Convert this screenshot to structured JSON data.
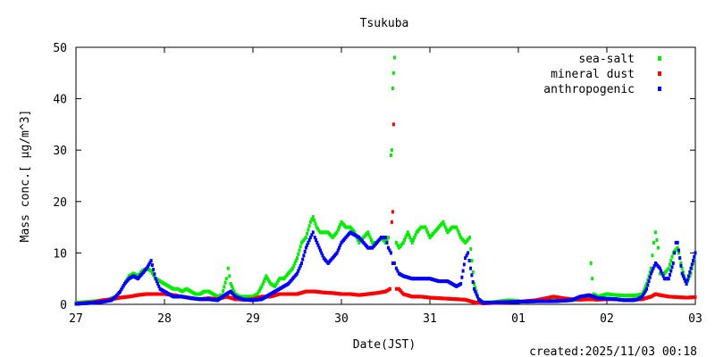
{
  "chart_data": {
    "type": "scatter",
    "title": "Tsukuba",
    "xlabel": "Date(JST)",
    "ylabel": "Mass conc.[ μg/m^3]",
    "footer": "created:2025/11/03 00:18",
    "ylim": [
      0,
      50
    ],
    "xlim": [
      0,
      7
    ],
    "x_tick_labels": [
      "27",
      "28",
      "29",
      "30",
      "31",
      "01",
      "02",
      "03"
    ],
    "y_tick_labels": [
      "0",
      "10",
      "20",
      "30",
      "40",
      "50"
    ],
    "y_ticks": [
      0,
      10,
      20,
      30,
      40,
      50
    ],
    "x_unit": "days from 27",
    "legend_position": "top-right",
    "grid": false,
    "series": [
      {
        "name": "sea-salt",
        "color": "#00ee00",
        "points": [
          [
            0.0,
            0.3
          ],
          [
            0.2,
            0.6
          ],
          [
            0.35,
            0.8
          ],
          [
            0.45,
            1.5
          ],
          [
            0.5,
            2.5
          ],
          [
            0.55,
            4
          ],
          [
            0.6,
            5.5
          ],
          [
            0.65,
            6
          ],
          [
            0.7,
            5.5
          ],
          [
            0.75,
            6.5
          ],
          [
            0.8,
            7
          ],
          [
            0.85,
            6.5
          ],
          [
            0.9,
            5
          ],
          [
            0.95,
            4.5
          ],
          [
            1.0,
            4
          ],
          [
            1.05,
            3.5
          ],
          [
            1.1,
            3
          ],
          [
            1.15,
            3
          ],
          [
            1.2,
            2.5
          ],
          [
            1.25,
            3
          ],
          [
            1.3,
            2.5
          ],
          [
            1.35,
            2
          ],
          [
            1.4,
            2
          ],
          [
            1.45,
            2.5
          ],
          [
            1.5,
            2.5
          ],
          [
            1.55,
            2
          ],
          [
            1.6,
            1.5
          ],
          [
            1.65,
            1.8
          ],
          [
            1.7,
            5
          ],
          [
            1.72,
            7
          ],
          [
            1.75,
            4
          ],
          [
            1.8,
            2
          ],
          [
            1.85,
            1.5
          ],
          [
            1.9,
            1.5
          ],
          [
            1.95,
            1.5
          ],
          [
            2.0,
            1.5
          ],
          [
            2.05,
            2
          ],
          [
            2.1,
            3.5
          ],
          [
            2.15,
            5.5
          ],
          [
            2.2,
            4
          ],
          [
            2.25,
            3.5
          ],
          [
            2.3,
            5
          ],
          [
            2.35,
            5
          ],
          [
            2.4,
            6
          ],
          [
            2.45,
            7
          ],
          [
            2.5,
            9
          ],
          [
            2.55,
            12
          ],
          [
            2.6,
            13
          ],
          [
            2.65,
            16
          ],
          [
            2.68,
            17
          ],
          [
            2.72,
            15
          ],
          [
            2.76,
            14
          ],
          [
            2.8,
            14
          ],
          [
            2.85,
            14
          ],
          [
            2.9,
            13
          ],
          [
            2.95,
            14
          ],
          [
            3.0,
            16
          ],
          [
            3.05,
            15
          ],
          [
            3.1,
            15
          ],
          [
            3.15,
            14
          ],
          [
            3.2,
            12
          ],
          [
            3.25,
            13
          ],
          [
            3.3,
            14
          ],
          [
            3.35,
            12
          ],
          [
            3.4,
            12
          ],
          [
            3.45,
            13
          ],
          [
            3.5,
            12
          ],
          [
            3.53,
            13
          ],
          [
            3.56,
            29
          ],
          [
            3.57,
            30
          ],
          [
            3.58,
            42
          ],
          [
            3.59,
            45
          ],
          [
            3.6,
            48
          ],
          [
            3.62,
            12
          ],
          [
            3.65,
            11
          ],
          [
            3.7,
            12
          ],
          [
            3.75,
            14
          ],
          [
            3.8,
            12
          ],
          [
            3.85,
            14
          ],
          [
            3.9,
            15
          ],
          [
            3.95,
            15
          ],
          [
            4.0,
            13
          ],
          [
            4.05,
            14
          ],
          [
            4.1,
            15
          ],
          [
            4.15,
            16
          ],
          [
            4.2,
            14
          ],
          [
            4.25,
            15
          ],
          [
            4.3,
            15
          ],
          [
            4.35,
            13
          ],
          [
            4.4,
            12
          ],
          [
            4.45,
            13
          ],
          [
            4.5,
            4
          ],
          [
            4.55,
            1
          ],
          [
            4.6,
            0.4
          ],
          [
            4.7,
            0.4
          ],
          [
            4.8,
            0.6
          ],
          [
            4.9,
            0.8
          ],
          [
            5.0,
            0.6
          ],
          [
            5.1,
            0.5
          ],
          [
            5.2,
            0.6
          ],
          [
            5.3,
            0.6
          ],
          [
            5.4,
            1
          ],
          [
            5.5,
            1
          ],
          [
            5.6,
            0.8
          ],
          [
            5.7,
            1
          ],
          [
            5.8,
            1.5
          ],
          [
            5.82,
            8
          ],
          [
            5.85,
            2
          ],
          [
            5.9,
            1.5
          ],
          [
            6.0,
            2
          ],
          [
            6.1,
            1.8
          ],
          [
            6.2,
            1.7
          ],
          [
            6.3,
            1.7
          ],
          [
            6.35,
            1.8
          ],
          [
            6.4,
            2
          ],
          [
            6.45,
            4
          ],
          [
            6.5,
            7
          ],
          [
            6.53,
            12
          ],
          [
            6.55,
            14
          ],
          [
            6.58,
            11
          ],
          [
            6.6,
            6
          ],
          [
            6.65,
            6
          ],
          [
            6.7,
            7
          ],
          [
            6.75,
            10
          ],
          [
            6.8,
            11
          ],
          [
            6.85,
            7
          ],
          [
            6.9,
            4
          ],
          [
            6.95,
            6
          ],
          [
            7.0,
            10
          ]
        ]
      },
      {
        "name": "mineral dust",
        "color": "#ff0000",
        "points": [
          [
            0.0,
            0.1
          ],
          [
            0.2,
            0.4
          ],
          [
            0.3,
            0.8
          ],
          [
            0.4,
            1
          ],
          [
            0.5,
            1.3
          ],
          [
            0.6,
            1.5
          ],
          [
            0.7,
            1.8
          ],
          [
            0.8,
            2
          ],
          [
            0.9,
            2
          ],
          [
            1.0,
            2
          ],
          [
            1.1,
            1.8
          ],
          [
            1.2,
            1.5
          ],
          [
            1.3,
            1.2
          ],
          [
            1.4,
            1
          ],
          [
            1.5,
            1.2
          ],
          [
            1.6,
            1
          ],
          [
            1.7,
            1.5
          ],
          [
            1.8,
            1
          ],
          [
            1.9,
            0.9
          ],
          [
            2.0,
            1
          ],
          [
            2.1,
            1.5
          ],
          [
            2.2,
            1.5
          ],
          [
            2.3,
            2
          ],
          [
            2.4,
            2
          ],
          [
            2.5,
            2
          ],
          [
            2.6,
            2.5
          ],
          [
            2.7,
            2.5
          ],
          [
            2.8,
            2.3
          ],
          [
            2.9,
            2.2
          ],
          [
            3.0,
            2
          ],
          [
            3.1,
            2
          ],
          [
            3.2,
            1.8
          ],
          [
            3.3,
            2
          ],
          [
            3.4,
            2.2
          ],
          [
            3.5,
            2.5
          ],
          [
            3.55,
            3
          ],
          [
            3.57,
            16
          ],
          [
            3.58,
            18
          ],
          [
            3.59,
            35
          ],
          [
            3.62,
            3
          ],
          [
            3.65,
            3
          ],
          [
            3.7,
            2
          ],
          [
            3.8,
            1.5
          ],
          [
            3.9,
            1.5
          ],
          [
            4.0,
            1.3
          ],
          [
            4.1,
            1.2
          ],
          [
            4.2,
            1.1
          ],
          [
            4.3,
            1
          ],
          [
            4.4,
            0.9
          ],
          [
            4.5,
            0.4
          ],
          [
            4.6,
            0.2
          ],
          [
            4.8,
            0.3
          ],
          [
            5.0,
            0.5
          ],
          [
            5.2,
            0.8
          ],
          [
            5.4,
            1.5
          ],
          [
            5.5,
            1.2
          ],
          [
            5.6,
            1
          ],
          [
            5.7,
            0.9
          ],
          [
            5.8,
            1
          ],
          [
            5.9,
            0.9
          ],
          [
            6.0,
            1
          ],
          [
            6.1,
            1
          ],
          [
            6.2,
            0.8
          ],
          [
            6.3,
            0.9
          ],
          [
            6.4,
            1
          ],
          [
            6.5,
            1.5
          ],
          [
            6.55,
            2
          ],
          [
            6.6,
            1.8
          ],
          [
            6.7,
            1.5
          ],
          [
            6.8,
            1.4
          ],
          [
            6.9,
            1.3
          ],
          [
            7.0,
            1.4
          ]
        ]
      },
      {
        "name": "anthropogenic",
        "color": "#0000ff",
        "points": [
          [
            0.0,
            0.1
          ],
          [
            0.2,
            0.3
          ],
          [
            0.3,
            0.5
          ],
          [
            0.4,
            0.8
          ],
          [
            0.45,
            1.5
          ],
          [
            0.5,
            2.5
          ],
          [
            0.55,
            4
          ],
          [
            0.6,
            5
          ],
          [
            0.65,
            5.5
          ],
          [
            0.7,
            5
          ],
          [
            0.75,
            6
          ],
          [
            0.8,
            7
          ],
          [
            0.85,
            8.5
          ],
          [
            0.9,
            5
          ],
          [
            0.95,
            3
          ],
          [
            1.0,
            2.5
          ],
          [
            1.05,
            2
          ],
          [
            1.1,
            1.5
          ],
          [
            1.2,
            1.5
          ],
          [
            1.3,
            1.2
          ],
          [
            1.4,
            1
          ],
          [
            1.5,
            1
          ],
          [
            1.6,
            0.8
          ],
          [
            1.7,
            2
          ],
          [
            1.75,
            2.5
          ],
          [
            1.8,
            1.5
          ],
          [
            1.9,
            0.9
          ],
          [
            2.0,
            0.8
          ],
          [
            2.1,
            1
          ],
          [
            2.2,
            2
          ],
          [
            2.3,
            3
          ],
          [
            2.4,
            4
          ],
          [
            2.45,
            5
          ],
          [
            2.5,
            6
          ],
          [
            2.55,
            8
          ],
          [
            2.6,
            11
          ],
          [
            2.65,
            13
          ],
          [
            2.68,
            14
          ],
          [
            2.7,
            13
          ],
          [
            2.75,
            11
          ],
          [
            2.8,
            9
          ],
          [
            2.85,
            8
          ],
          [
            2.9,
            9
          ],
          [
            2.95,
            10
          ],
          [
            3.0,
            12
          ],
          [
            3.05,
            13
          ],
          [
            3.1,
            14
          ],
          [
            3.15,
            13.5
          ],
          [
            3.2,
            13
          ],
          [
            3.25,
            12
          ],
          [
            3.3,
            11
          ],
          [
            3.35,
            11
          ],
          [
            3.4,
            12
          ],
          [
            3.45,
            13
          ],
          [
            3.5,
            13
          ],
          [
            3.53,
            11
          ],
          [
            3.56,
            10
          ],
          [
            3.58,
            8
          ],
          [
            3.6,
            8
          ],
          [
            3.62,
            7
          ],
          [
            3.65,
            6
          ],
          [
            3.7,
            5.5
          ],
          [
            3.8,
            5
          ],
          [
            3.9,
            5
          ],
          [
            4.0,
            5
          ],
          [
            4.1,
            4.5
          ],
          [
            4.2,
            4.5
          ],
          [
            4.3,
            3.5
          ],
          [
            4.35,
            4
          ],
          [
            4.4,
            9
          ],
          [
            4.43,
            10
          ],
          [
            4.46,
            7
          ],
          [
            4.5,
            3
          ],
          [
            4.55,
            1
          ],
          [
            4.6,
            0.3
          ],
          [
            4.8,
            0.4
          ],
          [
            5.0,
            0.5
          ],
          [
            5.2,
            0.6
          ],
          [
            5.4,
            0.6
          ],
          [
            5.6,
            0.8
          ],
          [
            5.7,
            1.5
          ],
          [
            5.8,
            1.8
          ],
          [
            5.9,
            1.2
          ],
          [
            6.0,
            1.1
          ],
          [
            6.1,
            1
          ],
          [
            6.2,
            0.8
          ],
          [
            6.3,
            0.8
          ],
          [
            6.35,
            1
          ],
          [
            6.4,
            1.5
          ],
          [
            6.45,
            3
          ],
          [
            6.5,
            6
          ],
          [
            6.55,
            8
          ],
          [
            6.6,
            7
          ],
          [
            6.65,
            5
          ],
          [
            6.7,
            5
          ],
          [
            6.75,
            8
          ],
          [
            6.78,
            12
          ],
          [
            6.8,
            12
          ],
          [
            6.85,
            6
          ],
          [
            6.9,
            4
          ],
          [
            6.95,
            7
          ],
          [
            7.0,
            10
          ]
        ]
      }
    ]
  }
}
